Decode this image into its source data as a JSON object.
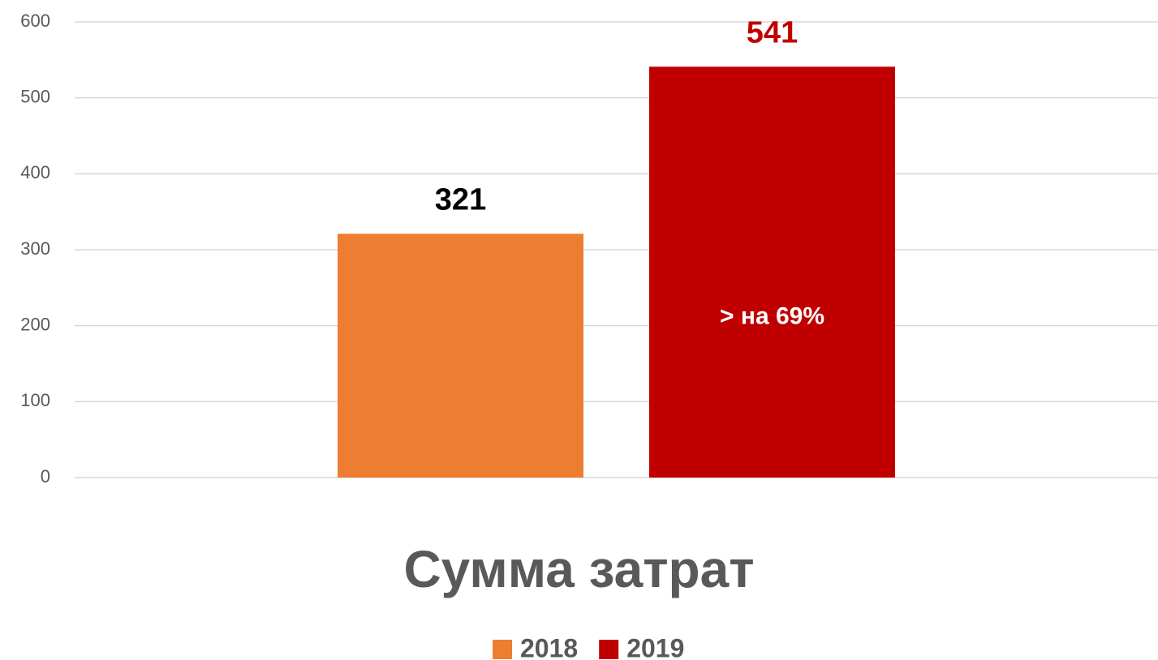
{
  "chart_data": {
    "type": "bar",
    "categories": [
      "Сумма затрат"
    ],
    "series": [
      {
        "name": "2018",
        "color": "#ED7D31",
        "label_color": "#000000",
        "values": [
          321
        ]
      },
      {
        "name": "2019",
        "color": "#C00000",
        "label_color": "#C00000",
        "values": [
          541
        ]
      }
    ],
    "annotation": "> на 69%",
    "ylim": [
      0,
      600
    ],
    "yticks": [
      0,
      100,
      200,
      300,
      400,
      500,
      600
    ],
    "grid": true,
    "legend": "bottom"
  }
}
